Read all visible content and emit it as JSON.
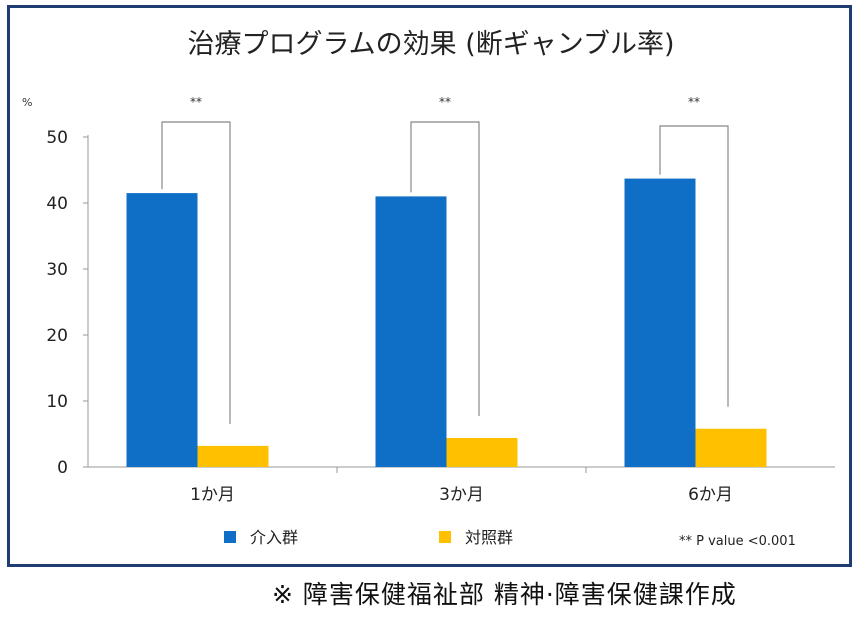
{
  "chart_data": {
    "type": "bar",
    "title": "治療プログラムの効果 (断ギャンブル率)",
    "ylabel": "%",
    "xlabel": "",
    "ylim": [
      0,
      50
    ],
    "yticks": [
      0,
      10,
      20,
      30,
      40,
      50
    ],
    "categories": [
      "1か月",
      "3か月",
      "6か月"
    ],
    "series": [
      {
        "name": "介入群",
        "color": "#0f6fc6",
        "values": [
          41.5,
          41,
          43.7
        ]
      },
      {
        "name": "対照群",
        "color": "#ffc000",
        "values": [
          3.2,
          4.4,
          5.8
        ]
      }
    ],
    "significance": [
      "**",
      "**",
      "**"
    ],
    "note": "** P value <0.001",
    "grid": false,
    "legend": "bottom"
  },
  "footer": "※ 障害保健福祉部 精神·障害保健課作成"
}
